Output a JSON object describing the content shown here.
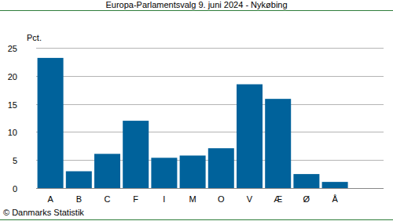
{
  "chart_data": {
    "type": "bar",
    "title": "Europa-Parlamentsvalg 9. juni 2024 - Nykøbing",
    "y_label": "Pct.",
    "source": "© Danmarks Statistik",
    "categories": [
      "A",
      "B",
      "C",
      "F",
      "I",
      "M",
      "O",
      "V",
      "Æ",
      "Ø",
      "Å"
    ],
    "values": [
      23.2,
      3.0,
      6.1,
      12.0,
      5.4,
      5.8,
      7.1,
      18.5,
      15.9,
      2.5,
      1.1
    ],
    "color": "#00629b",
    "ylim": [
      0,
      25
    ],
    "yticks": [
      0,
      5,
      10,
      15,
      20,
      25
    ],
    "grid": true
  }
}
